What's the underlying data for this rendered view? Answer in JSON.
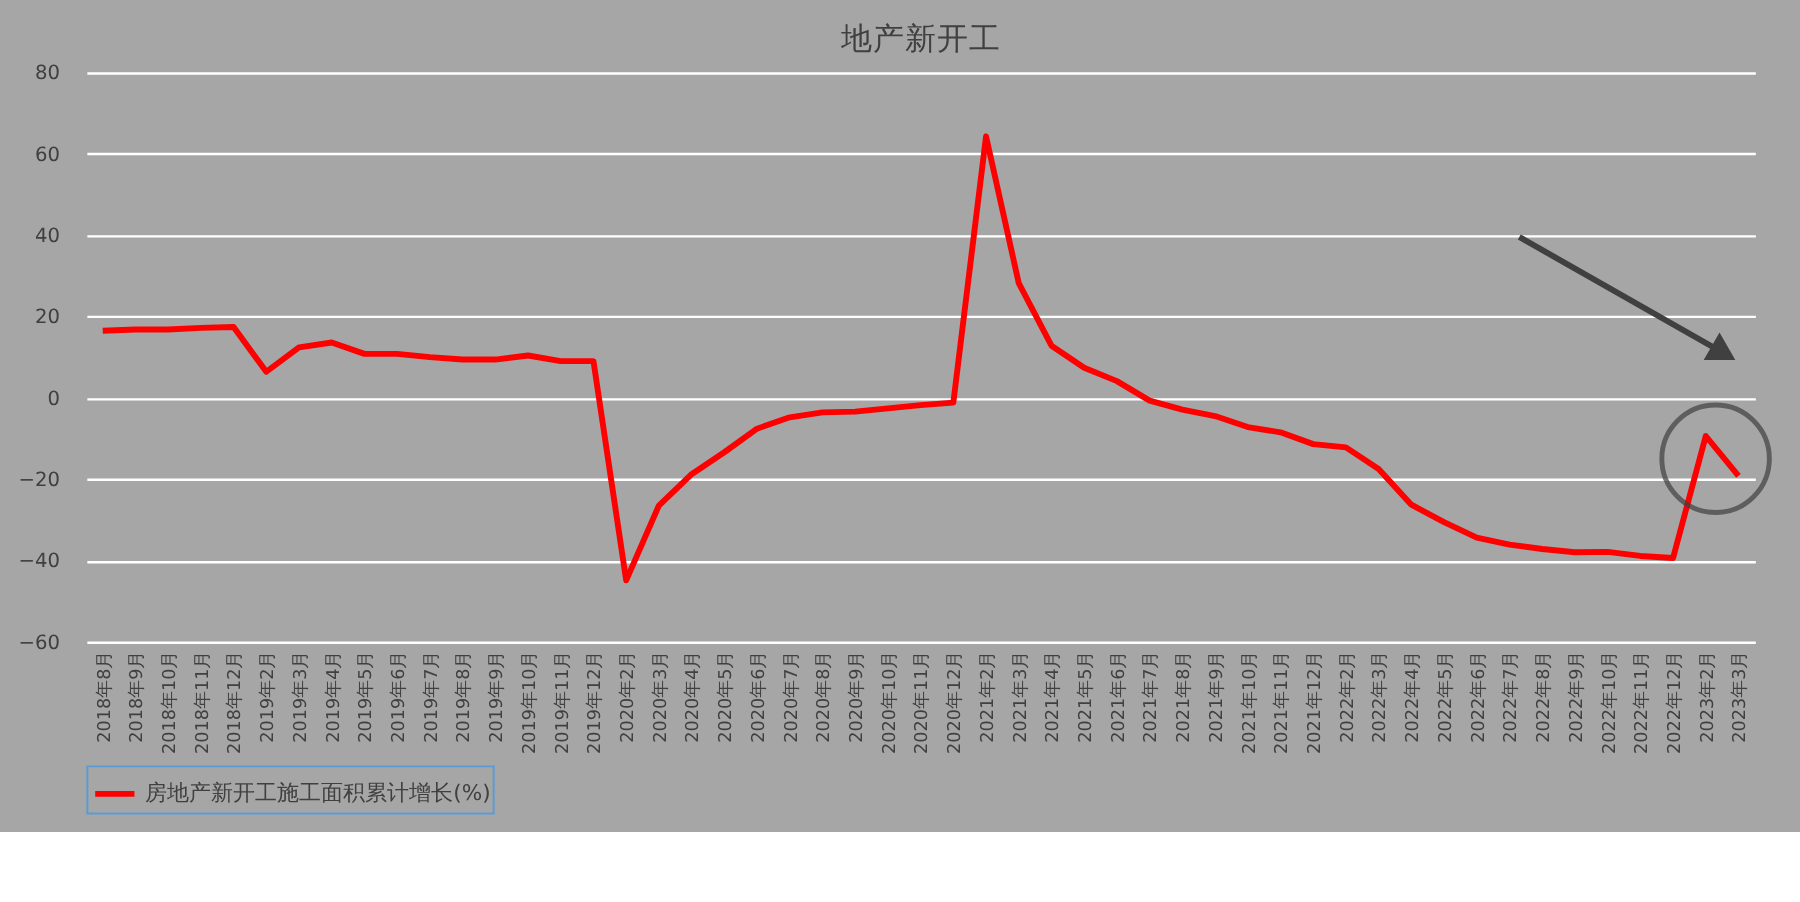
{
  "chart_data": {
    "type": "line",
    "title": "地产新开工",
    "categories": [
      "2018年8月",
      "2018年9月",
      "2018年10月",
      "2018年11月",
      "2018年12月",
      "2019年2月",
      "2019年3月",
      "2019年4月",
      "2019年5月",
      "2019年6月",
      "2019年7月",
      "2019年8月",
      "2019年9月",
      "2019年10月",
      "2019年11月",
      "2019年12月",
      "2020年2月",
      "2020年3月",
      "2020年4月",
      "2020年5月",
      "2020年6月",
      "2020年7月",
      "2020年8月",
      "2020年9月",
      "2020年10月",
      "2020年11月",
      "2020年12月",
      "2021年2月",
      "2021年3月",
      "2021年4月",
      "2021年5月",
      "2021年6月",
      "2021年7月",
      "2021年8月",
      "2021年9月",
      "2021年10月",
      "2021年11月",
      "2021年12月",
      "2022年2月",
      "2022年3月",
      "2022年4月",
      "2022年5月",
      "2022年6月",
      "2022年7月",
      "2022年8月",
      "2022年9月",
      "2022年10月",
      "2022年11月",
      "2022年12月",
      "2023年2月",
      "2023年3月"
    ],
    "series": [
      {
        "name": "房地产新开工施工面积累计增长(%)",
        "color": "#ff0000",
        "values": [
          16.5,
          16.8,
          16.8,
          17.2,
          17.4,
          6.4,
          12.4,
          13.6,
          10.8,
          10.8,
          10,
          9.4,
          9.4,
          10.4,
          9,
          9,
          -44.9,
          -26.5,
          -18.8,
          -13.4,
          -7.6,
          -4.8,
          -3.6,
          -3.4,
          -2.6,
          -1.8,
          -1.2,
          64.3,
          28.2,
          12.8,
          7.4,
          4.1,
          -0.7,
          -2.9,
          -4.5,
          -7.2,
          -8.5,
          -11.4,
          -12.2,
          -17.5,
          -26.3,
          -30.6,
          -34.4,
          -36.1,
          -37.2,
          -38,
          -37.9,
          -38.9,
          -39.4,
          -9.4,
          -19.2
        ]
      }
    ],
    "ylim": [
      -60,
      80
    ],
    "yticks": [
      -60,
      -40,
      -20,
      0,
      20,
      40,
      60,
      80
    ],
    "grid": "y",
    "legend": "bottom",
    "marker": "none",
    "line_style": "solid"
  }
}
